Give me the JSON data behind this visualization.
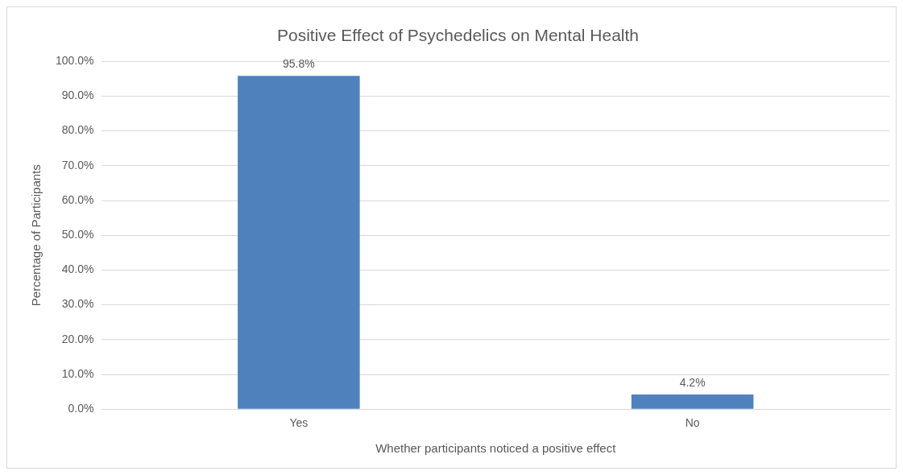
{
  "chart_data": {
    "type": "bar",
    "title": "Positive Effect of Psychedelics on Mental Health",
    "xlabel": "Whether participants noticed a positive effect",
    "ylabel": "Percentage of Participants",
    "categories": [
      "Yes",
      "No"
    ],
    "values": [
      95.8,
      4.2
    ],
    "color": "#4f81bd",
    "value_labels": [
      "95.8%",
      "4.2%"
    ],
    "ylim": [
      0,
      100
    ],
    "yticks": [
      {
        "value": 0,
        "label": "0.0%"
      },
      {
        "value": 10,
        "label": "10.0%"
      },
      {
        "value": 20,
        "label": "20.0%"
      },
      {
        "value": 30,
        "label": "30.0%"
      },
      {
        "value": 40,
        "label": "40.0%"
      },
      {
        "value": 50,
        "label": "50.0%"
      },
      {
        "value": 60,
        "label": "60.0%"
      },
      {
        "value": 70,
        "label": "70.0%"
      },
      {
        "value": 80,
        "label": "80.0%"
      },
      {
        "value": 90,
        "label": "90.0%"
      },
      {
        "value": 100,
        "label": "100.0%"
      }
    ],
    "grid": "y",
    "legend": false
  }
}
